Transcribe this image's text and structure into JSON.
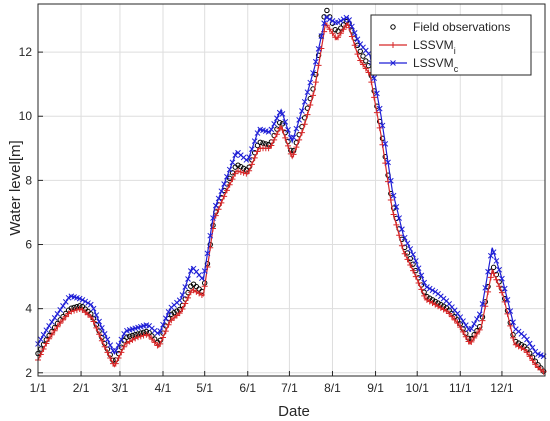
{
  "chart_data": {
    "type": "line",
    "title": "",
    "xlabel": "Date",
    "ylabel": "Water level[m]",
    "x_ticks": [
      "1/1",
      "2/1",
      "3/1",
      "4/1",
      "5/1",
      "6/1",
      "7/1",
      "8/1",
      "9/1",
      "10/1",
      "11/1",
      "12/1"
    ],
    "y_ticks": [
      2,
      4,
      6,
      8,
      10,
      12
    ],
    "xlim": [
      1,
      366
    ],
    "ylim": [
      1.9,
      13.5
    ],
    "grid": true,
    "legend_position": "top-right",
    "x_unit": "day of year",
    "series": [
      {
        "name": "Field observations",
        "name_sub": "",
        "marker": "circle",
        "color": "#000000",
        "x": [
          1,
          8,
          16,
          24,
          32,
          40,
          48,
          56,
          64,
          72,
          80,
          88,
          96,
          104,
          112,
          120,
          128,
          136,
          144,
          152,
          160,
          168,
          176,
          184,
          192,
          200,
          208,
          216,
          224,
          232,
          240,
          248,
          256,
          264,
          272,
          280,
          288,
          296,
          304,
          312,
          320,
          328,
          336,
          344,
          352,
          360,
          366
        ],
        "y": [
          2.6,
          3.1,
          3.6,
          4.0,
          4.1,
          3.8,
          3.0,
          2.3,
          3.1,
          3.2,
          3.3,
          2.9,
          3.8,
          4.0,
          4.8,
          4.5,
          6.9,
          7.8,
          8.5,
          8.3,
          9.2,
          9.1,
          9.9,
          8.8,
          9.8,
          11.0,
          13.4,
          12.6,
          13.0,
          12.1,
          11.5,
          9.6,
          7.3,
          6.0,
          5.3,
          4.4,
          4.2,
          4.0,
          3.6,
          3.0,
          3.5,
          5.4,
          4.5,
          3.0,
          2.8,
          2.3,
          2.0
        ]
      },
      {
        "name": "LSSVM",
        "name_sub": "i",
        "marker": "plus",
        "color": "#d62728",
        "x": [
          1,
          8,
          16,
          24,
          32,
          40,
          48,
          56,
          64,
          72,
          80,
          88,
          96,
          104,
          112,
          120,
          128,
          136,
          144,
          152,
          160,
          168,
          176,
          184,
          192,
          200,
          208,
          216,
          224,
          232,
          240,
          248,
          256,
          264,
          272,
          280,
          288,
          296,
          304,
          312,
          320,
          328,
          336,
          344,
          352,
          360,
          366
        ],
        "y": [
          2.4,
          3.0,
          3.5,
          3.9,
          4.0,
          3.7,
          2.9,
          2.2,
          2.9,
          3.1,
          3.2,
          2.8,
          3.6,
          3.9,
          4.6,
          4.4,
          6.8,
          7.6,
          8.3,
          8.2,
          9.0,
          9.0,
          9.7,
          8.7,
          9.6,
          10.8,
          12.9,
          12.4,
          12.9,
          11.8,
          11.3,
          9.4,
          7.1,
          5.8,
          5.1,
          4.3,
          4.1,
          3.9,
          3.5,
          2.9,
          3.4,
          5.2,
          4.4,
          2.9,
          2.7,
          2.2,
          2.0
        ]
      },
      {
        "name": "LSSVM",
        "name_sub": "c",
        "marker": "x",
        "color": "#1f1fd6",
        "x": [
          1,
          8,
          16,
          24,
          32,
          40,
          48,
          56,
          64,
          72,
          80,
          88,
          96,
          104,
          112,
          120,
          128,
          136,
          144,
          152,
          160,
          168,
          176,
          184,
          192,
          200,
          208,
          216,
          224,
          232,
          240,
          248,
          256,
          264,
          272,
          280,
          288,
          296,
          304,
          312,
          320,
          328,
          336,
          344,
          352,
          360,
          366
        ],
        "y": [
          2.9,
          3.4,
          3.9,
          4.4,
          4.3,
          4.1,
          3.3,
          2.6,
          3.3,
          3.4,
          3.5,
          3.2,
          4.0,
          4.3,
          5.3,
          4.9,
          7.1,
          8.0,
          8.9,
          8.6,
          9.6,
          9.5,
          10.2,
          9.2,
          10.3,
          11.5,
          13.1,
          12.9,
          13.1,
          12.3,
          11.9,
          10.0,
          7.7,
          6.3,
          5.6,
          4.7,
          4.5,
          4.2,
          3.8,
          3.3,
          3.9,
          5.9,
          4.8,
          3.4,
          3.1,
          2.6,
          2.5
        ]
      }
    ]
  }
}
